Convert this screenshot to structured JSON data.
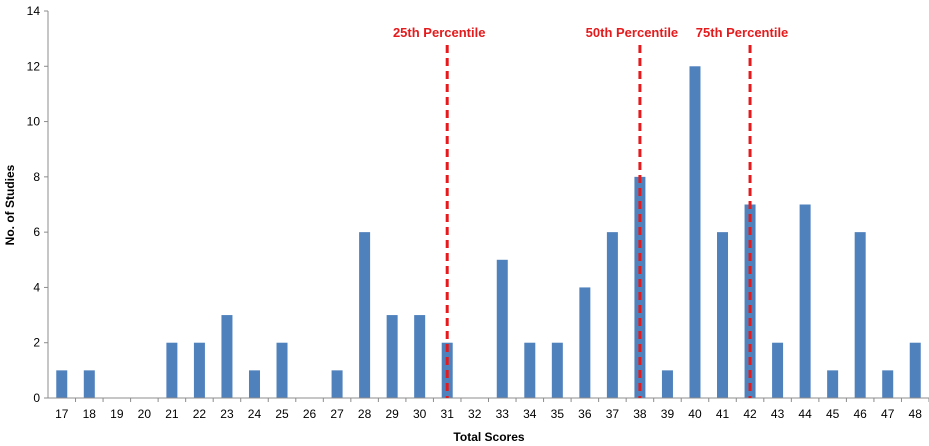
{
  "chart_data": {
    "type": "bar",
    "categories": [
      "17",
      "18",
      "19",
      "20",
      "21",
      "22",
      "23",
      "24",
      "25",
      "26",
      "27",
      "28",
      "29",
      "30",
      "31",
      "32",
      "33",
      "34",
      "35",
      "36",
      "37",
      "38",
      "39",
      "40",
      "41",
      "42",
      "43",
      "44",
      "45",
      "46",
      "47",
      "48"
    ],
    "values": [
      1,
      1,
      0,
      0,
      2,
      2,
      3,
      1,
      2,
      0,
      1,
      6,
      3,
      3,
      2,
      0,
      5,
      2,
      2,
      4,
      6,
      8,
      1,
      12,
      6,
      7,
      2,
      7,
      1,
      6,
      1,
      2
    ],
    "xlabel": "Total Scores",
    "ylabel": "No. of Studies",
    "ylim": [
      0,
      14
    ],
    "yticks": [
      0,
      2,
      4,
      6,
      8,
      10,
      12,
      14
    ],
    "grid": false,
    "bar_color": "#4F81BD",
    "annotations": [
      {
        "category": "31",
        "label": "25th Percentile"
      },
      {
        "category": "38",
        "label": "50th Percentile"
      },
      {
        "category": "42",
        "label": "75th Percentile"
      }
    ],
    "annotation_color": "#E41A1C"
  }
}
